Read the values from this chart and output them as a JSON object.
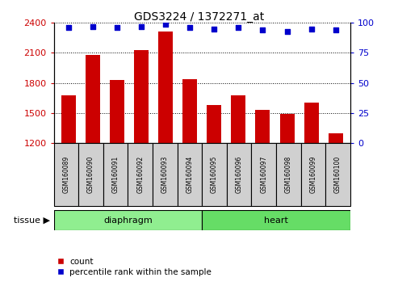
{
  "title": "GDS3224 / 1372271_at",
  "samples": [
    "GSM160089",
    "GSM160090",
    "GSM160091",
    "GSM160092",
    "GSM160093",
    "GSM160094",
    "GSM160095",
    "GSM160096",
    "GSM160097",
    "GSM160098",
    "GSM160099",
    "GSM160100"
  ],
  "counts": [
    1680,
    2080,
    1830,
    2130,
    2310,
    1840,
    1580,
    1680,
    1530,
    1490,
    1600,
    1300
  ],
  "percentiles": [
    96,
    97,
    96,
    97,
    99,
    96,
    95,
    96,
    94,
    93,
    95,
    94
  ],
  "groups": [
    {
      "label": "diaphragm",
      "start": 0,
      "end": 6,
      "color": "#90ee90"
    },
    {
      "label": "heart",
      "start": 6,
      "end": 12,
      "color": "#66dd66"
    }
  ],
  "ylim_left": [
    1200,
    2400
  ],
  "ylim_right": [
    0,
    100
  ],
  "yticks_left": [
    1200,
    1500,
    1800,
    2100,
    2400
  ],
  "yticks_right": [
    0,
    25,
    50,
    75,
    100
  ],
  "bar_color": "#cc0000",
  "dot_color": "#0000cc",
  "grid_color": "#000000",
  "sample_box_color": "#d0d0d0",
  "legend_count_color": "#cc0000",
  "legend_pct_color": "#0000cc",
  "tissue_label": "tissue",
  "legend_count": "count",
  "legend_pct": "percentile rank within the sample",
  "diaphragm_color": "#aaffaa",
  "heart_color": "#66ee66"
}
